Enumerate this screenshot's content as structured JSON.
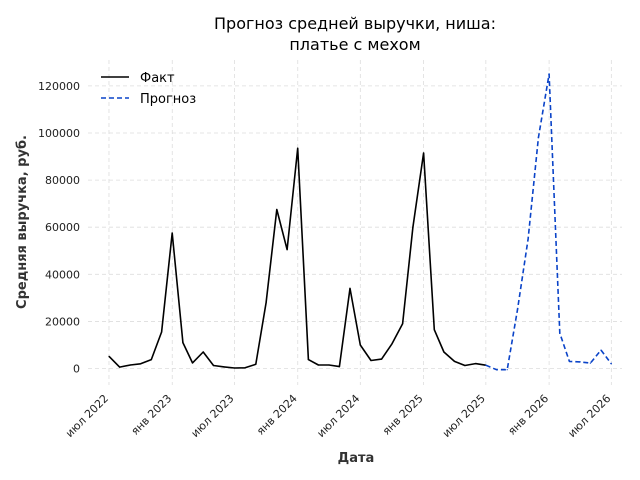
{
  "chart_data": {
    "type": "line",
    "title": [
      "Прогноз средней выручки, ниша:",
      "платье с мехом"
    ],
    "xlabel": "Дата",
    "ylabel": "Средняя выручка, руб.",
    "ylim": [
      -7000,
      131000
    ],
    "xlim": [
      "2022-05-01",
      "2026-08-01"
    ],
    "yticks": [
      0,
      20000,
      40000,
      60000,
      80000,
      100000,
      120000
    ],
    "xticks": [
      {
        "date": "2022-07-01",
        "label": "июл 2022"
      },
      {
        "date": "2023-01-01",
        "label": "янв 2023"
      },
      {
        "date": "2023-07-01",
        "label": "июл 2023"
      },
      {
        "date": "2024-01-01",
        "label": "янв 2024"
      },
      {
        "date": "2024-07-01",
        "label": "июл 2024"
      },
      {
        "date": "2025-01-01",
        "label": "янв 2025"
      },
      {
        "date": "2025-07-01",
        "label": "июл 2025"
      },
      {
        "date": "2026-01-01",
        "label": "янв 2026"
      },
      {
        "date": "2026-07-01",
        "label": "июл 2026"
      }
    ],
    "grid": true,
    "legend_position": "top-left",
    "series": [
      {
        "name": "Факт",
        "color": "#000000",
        "style": "solid",
        "points": [
          [
            "2022-07-01",
            5200
          ],
          [
            "2022-08-01",
            600
          ],
          [
            "2022-09-01",
            1500
          ],
          [
            "2022-10-01",
            2000
          ],
          [
            "2022-11-01",
            3800
          ],
          [
            "2022-12-01",
            15500
          ],
          [
            "2023-01-01",
            57500
          ],
          [
            "2023-02-01",
            11000
          ],
          [
            "2023-03-01",
            2400
          ],
          [
            "2023-04-01",
            7000
          ],
          [
            "2023-05-01",
            1300
          ],
          [
            "2023-06-01",
            700
          ],
          [
            "2023-07-01",
            200
          ],
          [
            "2023-08-01",
            300
          ],
          [
            "2023-09-01",
            1800
          ],
          [
            "2023-10-01",
            28000
          ],
          [
            "2023-11-01",
            67500
          ],
          [
            "2023-12-01",
            50500
          ],
          [
            "2024-01-01",
            93500
          ],
          [
            "2024-02-01",
            3800
          ],
          [
            "2024-03-01",
            1500
          ],
          [
            "2024-04-01",
            1500
          ],
          [
            "2024-05-01",
            800
          ],
          [
            "2024-06-01",
            34000
          ],
          [
            "2024-07-01",
            10000
          ],
          [
            "2024-08-01",
            3400
          ],
          [
            "2024-09-01",
            4000
          ],
          [
            "2024-10-01",
            10500
          ],
          [
            "2024-11-01",
            19000
          ],
          [
            "2024-12-01",
            60000
          ],
          [
            "2025-01-01",
            91500
          ],
          [
            "2025-02-01",
            16500
          ],
          [
            "2025-03-01",
            7000
          ],
          [
            "2025-04-01",
            3000
          ],
          [
            "2025-05-01",
            1300
          ],
          [
            "2025-06-01",
            2100
          ],
          [
            "2025-07-01",
            1400
          ]
        ]
      },
      {
        "name": "Прогноз",
        "color": "#0a43c8",
        "style": "dashed",
        "points": [
          [
            "2025-07-01",
            1400
          ],
          [
            "2025-08-01",
            -500
          ],
          [
            "2025-09-01",
            -500
          ],
          [
            "2025-10-01",
            25000
          ],
          [
            "2025-11-01",
            55000
          ],
          [
            "2025-12-01",
            98000
          ],
          [
            "2026-01-01",
            125000
          ],
          [
            "2026-02-01",
            15000
          ],
          [
            "2026-03-01",
            3000
          ],
          [
            "2026-04-01",
            2800
          ],
          [
            "2026-05-01",
            2300
          ],
          [
            "2026-06-01",
            7800
          ],
          [
            "2026-07-01",
            2000
          ]
        ]
      }
    ]
  }
}
